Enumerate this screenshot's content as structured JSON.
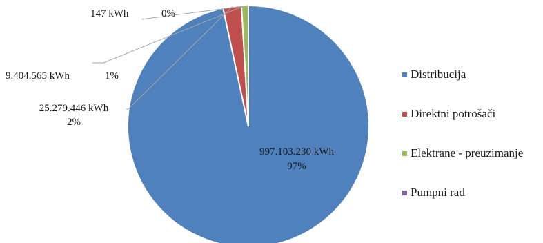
{
  "chart_data": {
    "type": "pie",
    "categories": [
      "Distribucija",
      "Direktni potrošači",
      "Elektrane - preuzimanje",
      "Pumpni rad"
    ],
    "values": [
      997103230,
      25279446,
      9404565,
      147
    ],
    "unit": "kWh",
    "colors": [
      "#4f81bd",
      "#c0504d",
      "#9bbb59",
      "#8064a2"
    ],
    "data_labels": [
      {
        "value_text": "997.103.230  kWh",
        "percent_text": "97%"
      },
      {
        "value_text": "25.279.446 kWh",
        "percent_text": "2%"
      },
      {
        "value_text": "9.404.565  kWh",
        "percent_text": "1%"
      },
      {
        "value_text": "147  kWh",
        "percent_text": "0%"
      }
    ],
    "legend_position": "right"
  }
}
